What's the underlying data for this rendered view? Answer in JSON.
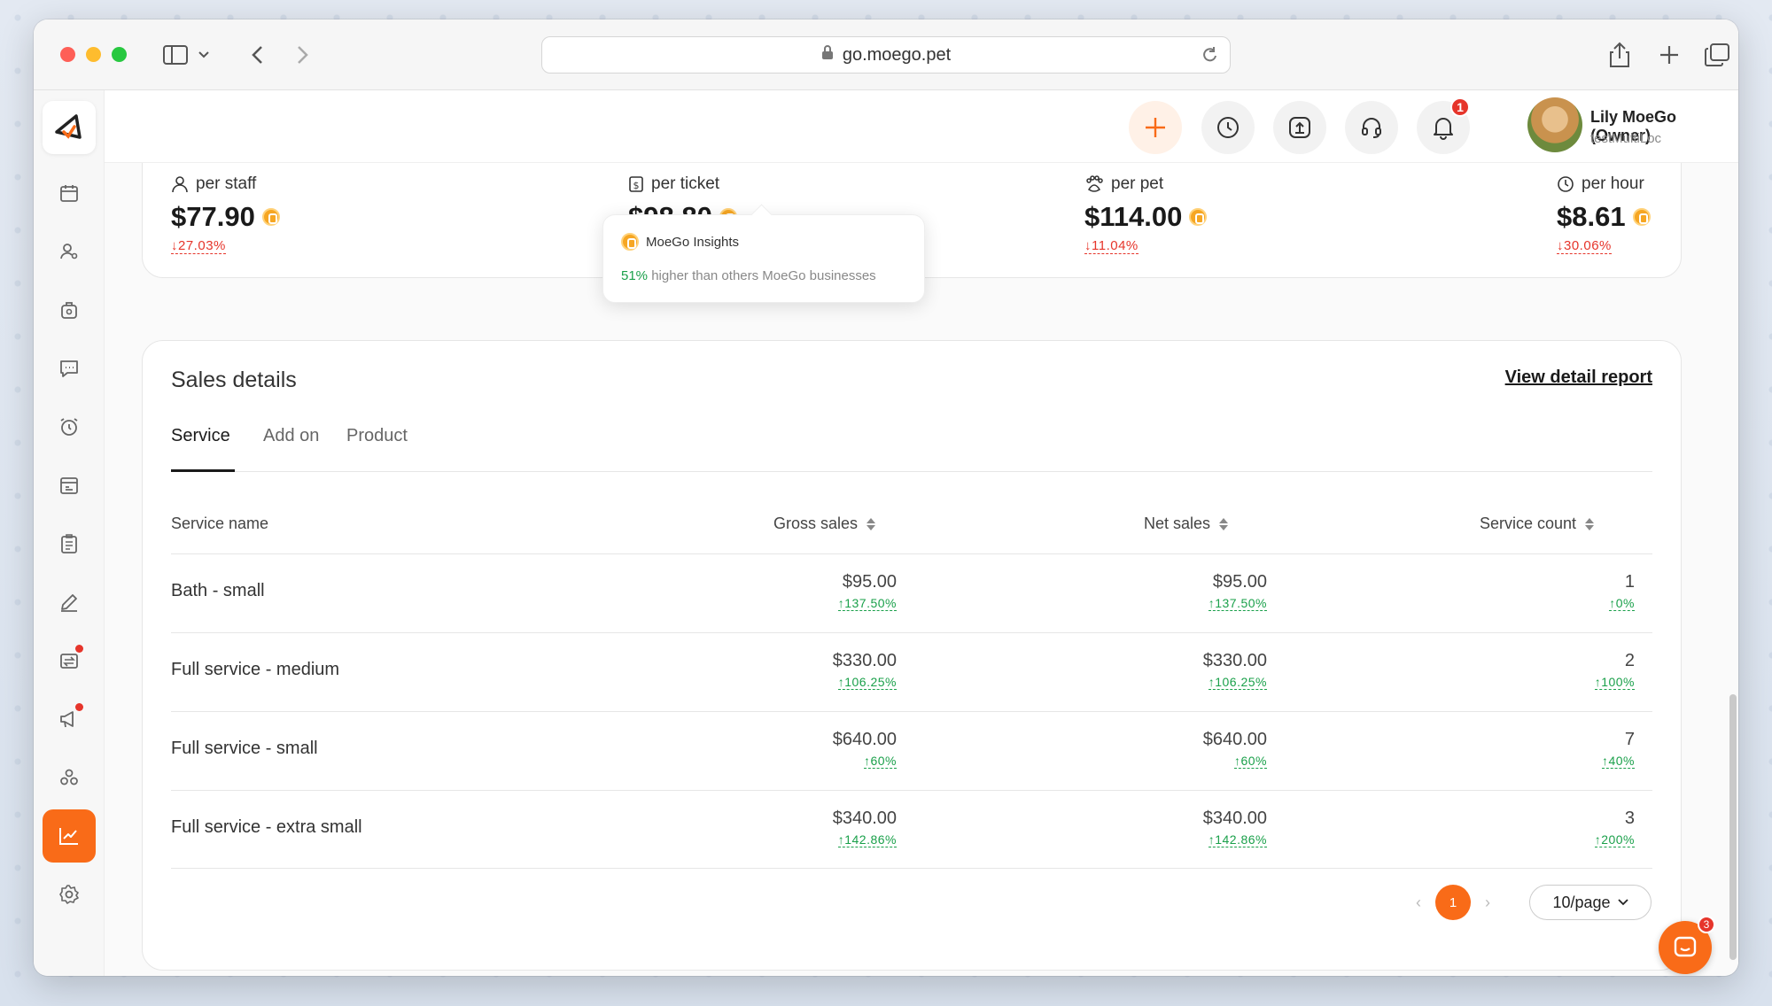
{
  "browser": {
    "url": "go.moego.pet"
  },
  "header": {
    "notification_count": "1",
    "user_name": "Lily MoeGo (Owner)",
    "user_location": "testMultiLoc"
  },
  "metrics": [
    {
      "label": "per staff",
      "value": "$77.90",
      "change": "↓27.03%",
      "icon": "user-icon"
    },
    {
      "label": "per ticket",
      "value": "$98.80",
      "change": "",
      "icon": "dollar-ticket-icon"
    },
    {
      "label": "per pet",
      "value": "$114.00",
      "change": "↓11.04%",
      "icon": "paw-icon"
    },
    {
      "label": "per hour",
      "value": "$8.61",
      "change": "↓30.06%",
      "icon": "clock-icon"
    }
  ],
  "tooltip": {
    "title": "MoeGo Insights",
    "highlight": "51%",
    "text": "higher than others MoeGo businesses"
  },
  "sales": {
    "title": "Sales details",
    "view_report": "View detail report",
    "tabs": [
      "Service",
      "Add on",
      "Product"
    ],
    "columns": [
      "Service name",
      "Gross sales",
      "Net sales",
      "Service count"
    ],
    "rows": [
      {
        "name": "Bath - small",
        "gross": "$95.00",
        "gross_chg": "↑137.50%",
        "net": "$95.00",
        "net_chg": "↑137.50%",
        "count": "1",
        "count_chg": "↑0%"
      },
      {
        "name": "Full service - medium",
        "gross": "$330.00",
        "gross_chg": "↑106.25%",
        "net": "$330.00",
        "net_chg": "↑106.25%",
        "count": "2",
        "count_chg": "↑100%"
      },
      {
        "name": "Full service - small",
        "gross": "$640.00",
        "gross_chg": "↑60%",
        "net": "$640.00",
        "net_chg": "↑60%",
        "count": "7",
        "count_chg": "↑40%"
      },
      {
        "name": "Full service - extra small",
        "gross": "$340.00",
        "gross_chg": "↑142.86%",
        "net": "$340.00",
        "net_chg": "↑142.86%",
        "count": "3",
        "count_chg": "↑200%"
      }
    ],
    "pagination": {
      "current_page": "1",
      "page_size": "10/page"
    }
  },
  "chat": {
    "badge": "3"
  },
  "colors": {
    "accent": "#f96b18",
    "up": "#1aa04a",
    "down": "#e6352b"
  }
}
